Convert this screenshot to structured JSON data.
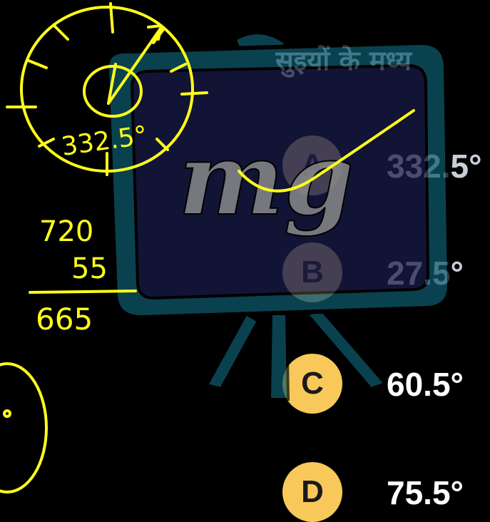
{
  "question": {
    "text": "सुइयों के मध्य"
  },
  "options": [
    {
      "letter": "A",
      "text": "332.5°"
    },
    {
      "letter": "B",
      "text": "27.5°"
    },
    {
      "letter": "C",
      "text": "60.5°"
    },
    {
      "letter": "D",
      "text": "75.5°"
    }
  ],
  "handwritten_work": {
    "angle_note": "332.5°",
    "sum_line1": "720",
    "sum_line2": "55",
    "sum_result": "665"
  },
  "watermark": {
    "text": "mg"
  },
  "colors": {
    "background": "#000000",
    "ink": "#ffff1a",
    "badge": "#f8c95a",
    "board_frame": "#0f5a6e",
    "board_surface": "#1a1c4a"
  }
}
